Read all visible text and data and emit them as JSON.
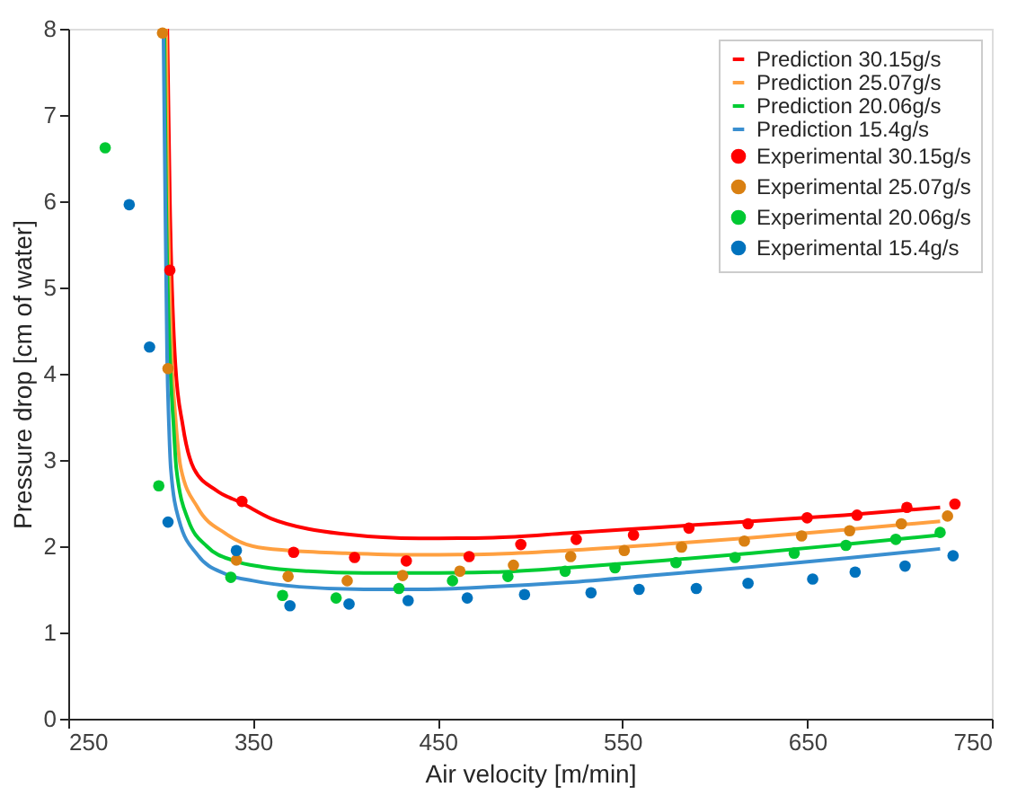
{
  "chart_data": {
    "type": "line",
    "xlabel": "Air velocity [m/min]",
    "ylabel": "Pressure drop [cm of water]",
    "xlim": [
      250,
      750
    ],
    "xticks": [
      250,
      350,
      450,
      550,
      650,
      750
    ],
    "ylim": [
      0,
      8
    ],
    "yticks": [
      0,
      1,
      2,
      3,
      4,
      5,
      6,
      7,
      8
    ],
    "grid": false,
    "legend": "top right",
    "series": [
      {
        "name": "Prediction 30.15g/s",
        "line_style": "solid",
        "color": "#ff0000",
        "x": [
          303.6,
          305,
          308,
          312,
          318,
          330,
          344,
          360,
          380,
          400,
          440,
          480,
          520,
          570,
          620,
          670,
          722
        ],
        "values": [
          8,
          6,
          4.1,
          3.4,
          2.9,
          2.65,
          2.5,
          2.32,
          2.2,
          2.14,
          2.09,
          2.1,
          2.15,
          2.22,
          2.29,
          2.36,
          2.45
        ]
      },
      {
        "name": "Prediction 25.07g/s",
        "line_style": "solid",
        "color": "#ffa040",
        "x": [
          303,
          304,
          306,
          308,
          311,
          320,
          335,
          350,
          370,
          400,
          440,
          480,
          520,
          570,
          620,
          670,
          722
        ],
        "values": [
          8,
          6,
          4.2,
          3.5,
          2.9,
          2.45,
          2.15,
          2.0,
          1.95,
          1.92,
          1.9,
          1.91,
          1.95,
          2.02,
          2.1,
          2.19,
          2.29
        ]
      },
      {
        "name": "Prediction 20.06g/s",
        "line_style": "solid",
        "color": "#00cc33",
        "x": [
          302,
          303,
          305,
          307,
          308.5,
          315,
          325,
          340,
          355,
          380,
          410,
          440,
          480,
          520,
          570,
          620,
          670,
          722
        ],
        "values": [
          8,
          6,
          4.2,
          3.4,
          2.9,
          2.3,
          2.0,
          1.83,
          1.76,
          1.71,
          1.69,
          1.69,
          1.7,
          1.75,
          1.83,
          1.92,
          2.02,
          2.13
        ]
      },
      {
        "name": "Prediction 15.4g/s",
        "line_style": "solid",
        "color": "#3a8fd0",
        "x": [
          301.5,
          302.5,
          303.5,
          304.5,
          305.5,
          310,
          320,
          335,
          350,
          375,
          410,
          440,
          480,
          520,
          570,
          620,
          670,
          722
        ],
        "values": [
          8,
          6,
          4.2,
          3.4,
          2.9,
          2.3,
          1.9,
          1.68,
          1.6,
          1.53,
          1.5,
          1.5,
          1.53,
          1.58,
          1.67,
          1.76,
          1.86,
          1.97
        ]
      },
      {
        "name": "Experimental 30.15g/s",
        "type": "scatter",
        "marker": "circle",
        "color": "#ff0000",
        "x": [
          305,
          344,
          372,
          405,
          433,
          467,
          495,
          525,
          556,
          586,
          618,
          650,
          677,
          704,
          730
        ],
        "values": [
          5.2,
          2.52,
          1.93,
          1.87,
          1.83,
          1.88,
          2.02,
          2.08,
          2.13,
          2.21,
          2.26,
          2.33,
          2.36,
          2.45,
          2.49
        ]
      },
      {
        "name": "Experimental 25.07g/s",
        "type": "scatter",
        "marker": "circle",
        "color": "#d98012",
        "x": [
          301,
          304,
          341,
          369,
          401,
          431,
          462,
          491,
          522,
          551,
          582,
          616,
          647,
          673,
          701,
          726
        ],
        "values": [
          7.95,
          4.06,
          1.84,
          1.65,
          1.6,
          1.66,
          1.71,
          1.78,
          1.88,
          1.95,
          1.99,
          2.06,
          2.12,
          2.18,
          2.26,
          2.35
        ]
      },
      {
        "name": "Experimental 20.06g/s",
        "type": "scatter",
        "marker": "circle",
        "color": "#00c832",
        "x": [
          270,
          299,
          338,
          366,
          395,
          429,
          458,
          488,
          519,
          546,
          579,
          611,
          643,
          671,
          698,
          722
        ],
        "values": [
          6.62,
          2.7,
          1.64,
          1.43,
          1.4,
          1.51,
          1.6,
          1.65,
          1.71,
          1.75,
          1.81,
          1.87,
          1.92,
          2.01,
          2.08,
          2.16
        ]
      },
      {
        "name": "Experimental 15.4g/s",
        "type": "scatter",
        "marker": "circle",
        "color": "#0072bd",
        "x": [
          283,
          294,
          304,
          341,
          370,
          402,
          434,
          466,
          497,
          533,
          559,
          590,
          618,
          653,
          676,
          703,
          729
        ],
        "values": [
          5.96,
          4.31,
          2.28,
          1.95,
          1.31,
          1.33,
          1.37,
          1.4,
          1.44,
          1.46,
          1.5,
          1.51,
          1.57,
          1.62,
          1.7,
          1.77,
          1.89
        ]
      }
    ]
  }
}
